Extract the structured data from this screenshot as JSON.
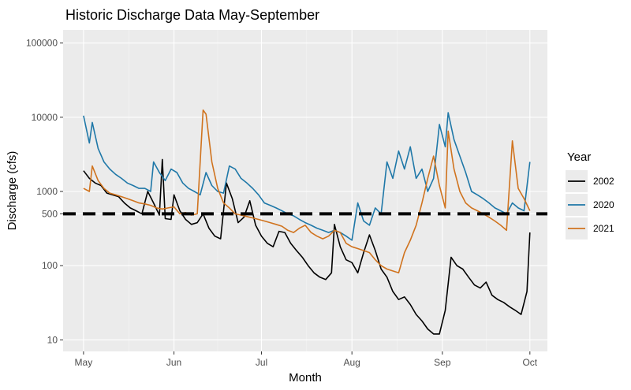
{
  "chart_data": {
    "type": "line",
    "title": "Historic Discharge Data May-September",
    "xlabel": "Month",
    "ylabel": "Discharge (cfs)",
    "y_scale": "log10",
    "ylim": [
      7,
      150000
    ],
    "xlim": [
      "2002-04-24",
      "2002-10-07"
    ],
    "x_ticks": [
      {
        "date": "2002-05-01",
        "label": "May"
      },
      {
        "date": "2002-06-01",
        "label": "Jun"
      },
      {
        "date": "2002-07-01",
        "label": "Jul"
      },
      {
        "date": "2002-08-01",
        "label": "Aug"
      },
      {
        "date": "2002-09-01",
        "label": "Sep"
      },
      {
        "date": "2002-10-01",
        "label": "Oct"
      }
    ],
    "y_ticks": [
      {
        "value": 10,
        "label": "10"
      },
      {
        "value": 100,
        "label": "100"
      },
      {
        "value": 500,
        "label": "500"
      },
      {
        "value": 1000,
        "label": "1000"
      },
      {
        "value": 10000,
        "label": "10000"
      },
      {
        "value": 100000,
        "label": "100000"
      }
    ],
    "grid": true,
    "background": "#ebebeb",
    "reference_line": {
      "value": 500,
      "style": "dashed",
      "color": "#000000"
    },
    "legend": {
      "title": "Year",
      "position": "right"
    },
    "series": [
      {
        "name": "2002",
        "color": "#000000",
        "points": [
          [
            "2002-05-01",
            1900
          ],
          [
            "2002-05-03",
            1500
          ],
          [
            "2002-05-05",
            1300
          ],
          [
            "2002-05-07",
            1200
          ],
          [
            "2002-05-09",
            950
          ],
          [
            "2002-05-11",
            900
          ],
          [
            "2002-05-13",
            850
          ],
          [
            "2002-05-15",
            700
          ],
          [
            "2002-05-17",
            600
          ],
          [
            "2002-05-19",
            550
          ],
          [
            "2002-05-21",
            500
          ],
          [
            "2002-05-23",
            1000
          ],
          [
            "2002-05-25",
            700
          ],
          [
            "2002-05-27",
            480
          ],
          [
            "2002-05-29",
            430
          ],
          [
            "2002-05-31",
            420
          ],
          [
            "2002-05-28",
            2700
          ],
          [
            "2002-06-01",
            900
          ],
          [
            "2002-06-03",
            550
          ],
          [
            "2002-06-05",
            420
          ],
          [
            "2002-06-07",
            360
          ],
          [
            "2002-06-09",
            380
          ],
          [
            "2002-06-11",
            500
          ],
          [
            "2002-06-13",
            320
          ],
          [
            "2002-06-15",
            250
          ],
          [
            "2002-06-17",
            230
          ],
          [
            "2002-06-19",
            1300
          ],
          [
            "2002-06-21",
            800
          ],
          [
            "2002-06-23",
            380
          ],
          [
            "2002-06-25",
            450
          ],
          [
            "2002-06-27",
            750
          ],
          [
            "2002-06-29",
            350
          ],
          [
            "2002-07-01",
            250
          ],
          [
            "2002-07-03",
            200
          ],
          [
            "2002-07-05",
            180
          ],
          [
            "2002-07-07",
            290
          ],
          [
            "2002-07-09",
            280
          ],
          [
            "2002-07-11",
            200
          ],
          [
            "2002-07-13",
            160
          ],
          [
            "2002-07-15",
            130
          ],
          [
            "2002-07-17",
            100
          ],
          [
            "2002-07-19",
            80
          ],
          [
            "2002-07-21",
            70
          ],
          [
            "2002-07-23",
            65
          ],
          [
            "2002-07-25",
            80
          ],
          [
            "2002-07-26",
            360
          ],
          [
            "2002-07-28",
            180
          ],
          [
            "2002-07-30",
            120
          ],
          [
            "2002-08-01",
            110
          ],
          [
            "2002-08-03",
            80
          ],
          [
            "2002-08-05",
            150
          ],
          [
            "2002-08-07",
            260
          ],
          [
            "2002-08-09",
            160
          ],
          [
            "2002-08-11",
            90
          ],
          [
            "2002-08-13",
            70
          ],
          [
            "2002-08-15",
            45
          ],
          [
            "2002-08-17",
            35
          ],
          [
            "2002-08-19",
            38
          ],
          [
            "2002-08-21",
            30
          ],
          [
            "2002-08-23",
            22
          ],
          [
            "2002-08-25",
            18
          ],
          [
            "2002-08-27",
            14
          ],
          [
            "2002-08-29",
            12
          ],
          [
            "2002-08-31",
            12
          ],
          [
            "2002-09-02",
            25
          ],
          [
            "2002-09-04",
            130
          ],
          [
            "2002-09-06",
            100
          ],
          [
            "2002-09-08",
            90
          ],
          [
            "2002-09-10",
            70
          ],
          [
            "2002-09-12",
            55
          ],
          [
            "2002-09-14",
            50
          ],
          [
            "2002-09-16",
            60
          ],
          [
            "2002-09-18",
            40
          ],
          [
            "2002-09-20",
            35
          ],
          [
            "2002-09-22",
            32
          ],
          [
            "2002-09-24",
            28
          ],
          [
            "2002-09-26",
            25
          ],
          [
            "2002-09-28",
            22
          ],
          [
            "2002-09-30",
            45
          ],
          [
            "2002-10-01",
            280
          ]
        ]
      },
      {
        "name": "2020",
        "color": "#1f78a8",
        "points": [
          [
            "2002-05-01",
            10500
          ],
          [
            "2002-05-03",
            4500
          ],
          [
            "2002-05-04",
            8500
          ],
          [
            "2002-05-06",
            3800
          ],
          [
            "2002-05-08",
            2500
          ],
          [
            "2002-05-10",
            2000
          ],
          [
            "2002-05-12",
            1700
          ],
          [
            "2002-05-14",
            1500
          ],
          [
            "2002-05-16",
            1300
          ],
          [
            "2002-05-18",
            1200
          ],
          [
            "2002-05-20",
            1100
          ],
          [
            "2002-05-22",
            1100
          ],
          [
            "2002-05-24",
            1000
          ],
          [
            "2002-05-25",
            2500
          ],
          [
            "2002-05-27",
            1800
          ],
          [
            "2002-05-29",
            1400
          ],
          [
            "2002-05-31",
            2000
          ],
          [
            "2002-06-02",
            1800
          ],
          [
            "2002-06-04",
            1300
          ],
          [
            "2002-06-06",
            1100
          ],
          [
            "2002-06-08",
            1000
          ],
          [
            "2002-06-10",
            900
          ],
          [
            "2002-06-12",
            1800
          ],
          [
            "2002-06-14",
            1200
          ],
          [
            "2002-06-16",
            1000
          ],
          [
            "2002-06-18",
            950
          ],
          [
            "2002-06-20",
            2200
          ],
          [
            "2002-06-22",
            2000
          ],
          [
            "2002-06-24",
            1500
          ],
          [
            "2002-06-26",
            1300
          ],
          [
            "2002-06-28",
            1100
          ],
          [
            "2002-06-30",
            900
          ],
          [
            "2002-07-02",
            700
          ],
          [
            "2002-07-04",
            650
          ],
          [
            "2002-07-06",
            600
          ],
          [
            "2002-07-08",
            550
          ],
          [
            "2002-07-10",
            500
          ],
          [
            "2002-07-12",
            470
          ],
          [
            "2002-07-14",
            420
          ],
          [
            "2002-07-16",
            380
          ],
          [
            "2002-07-18",
            350
          ],
          [
            "2002-07-20",
            320
          ],
          [
            "2002-07-22",
            300
          ],
          [
            "2002-07-24",
            280
          ],
          [
            "2002-07-26",
            300
          ],
          [
            "2002-07-28",
            280
          ],
          [
            "2002-07-30",
            250
          ],
          [
            "2002-08-01",
            220
          ],
          [
            "2002-08-03",
            700
          ],
          [
            "2002-08-05",
            400
          ],
          [
            "2002-08-07",
            350
          ],
          [
            "2002-08-09",
            600
          ],
          [
            "2002-08-11",
            500
          ],
          [
            "2002-08-13",
            2500
          ],
          [
            "2002-08-15",
            1500
          ],
          [
            "2002-08-17",
            3500
          ],
          [
            "2002-08-19",
            2000
          ],
          [
            "2002-08-21",
            4000
          ],
          [
            "2002-08-23",
            1500
          ],
          [
            "2002-08-25",
            2000
          ],
          [
            "2002-08-27",
            1000
          ],
          [
            "2002-08-29",
            1500
          ],
          [
            "2002-08-31",
            8000
          ],
          [
            "2002-09-02",
            4000
          ],
          [
            "2002-09-03",
            11500
          ],
          [
            "2002-09-05",
            5000
          ],
          [
            "2002-09-07",
            3000
          ],
          [
            "2002-09-09",
            1800
          ],
          [
            "2002-09-11",
            1000
          ],
          [
            "2002-09-13",
            900
          ],
          [
            "2002-09-15",
            800
          ],
          [
            "2002-09-17",
            700
          ],
          [
            "2002-09-19",
            600
          ],
          [
            "2002-09-21",
            550
          ],
          [
            "2002-09-23",
            500
          ],
          [
            "2002-09-25",
            700
          ],
          [
            "2002-09-27",
            600
          ],
          [
            "2002-09-29",
            550
          ],
          [
            "2002-10-01",
            2500
          ]
        ]
      },
      {
        "name": "2021",
        "color": "#d0731e",
        "points": [
          [
            "2002-05-01",
            1100
          ],
          [
            "2002-05-03",
            1000
          ],
          [
            "2002-05-04",
            2200
          ],
          [
            "2002-05-06",
            1400
          ],
          [
            "2002-05-08",
            1100
          ],
          [
            "2002-05-10",
            950
          ],
          [
            "2002-05-12",
            900
          ],
          [
            "2002-05-14",
            850
          ],
          [
            "2002-05-16",
            800
          ],
          [
            "2002-05-18",
            750
          ],
          [
            "2002-05-20",
            700
          ],
          [
            "2002-05-22",
            680
          ],
          [
            "2002-05-24",
            650
          ],
          [
            "2002-05-26",
            600
          ],
          [
            "2002-05-28",
            580
          ],
          [
            "2002-05-30",
            600
          ],
          [
            "2002-06-01",
            620
          ],
          [
            "2002-06-03",
            500
          ],
          [
            "2002-06-05",
            520
          ],
          [
            "2002-06-07",
            480
          ],
          [
            "2002-06-09",
            500
          ],
          [
            "2002-06-11",
            12500
          ],
          [
            "2002-06-12",
            11000
          ],
          [
            "2002-06-14",
            2500
          ],
          [
            "2002-06-16",
            1100
          ],
          [
            "2002-06-18",
            700
          ],
          [
            "2002-06-20",
            600
          ],
          [
            "2002-06-22",
            500
          ],
          [
            "2002-06-24",
            480
          ],
          [
            "2002-06-26",
            460
          ],
          [
            "2002-06-28",
            440
          ],
          [
            "2002-06-30",
            420
          ],
          [
            "2002-07-02",
            400
          ],
          [
            "2002-07-04",
            380
          ],
          [
            "2002-07-06",
            360
          ],
          [
            "2002-07-08",
            340
          ],
          [
            "2002-07-10",
            300
          ],
          [
            "2002-07-12",
            280
          ],
          [
            "2002-07-14",
            320
          ],
          [
            "2002-07-16",
            350
          ],
          [
            "2002-07-18",
            280
          ],
          [
            "2002-07-20",
            250
          ],
          [
            "2002-07-22",
            230
          ],
          [
            "2002-07-24",
            250
          ],
          [
            "2002-07-26",
            300
          ],
          [
            "2002-07-28",
            280
          ],
          [
            "2002-07-30",
            200
          ],
          [
            "2002-08-01",
            180
          ],
          [
            "2002-08-03",
            170
          ],
          [
            "2002-08-05",
            160
          ],
          [
            "2002-08-07",
            150
          ],
          [
            "2002-08-09",
            120
          ],
          [
            "2002-08-11",
            100
          ],
          [
            "2002-08-13",
            90
          ],
          [
            "2002-08-15",
            85
          ],
          [
            "2002-08-17",
            80
          ],
          [
            "2002-08-19",
            150
          ],
          [
            "2002-08-21",
            220
          ],
          [
            "2002-08-23",
            350
          ],
          [
            "2002-08-25",
            700
          ],
          [
            "2002-08-27",
            1500
          ],
          [
            "2002-08-29",
            3000
          ],
          [
            "2002-08-31",
            1200
          ],
          [
            "2002-09-02",
            600
          ],
          [
            "2002-09-03",
            6500
          ],
          [
            "2002-09-05",
            2000
          ],
          [
            "2002-09-07",
            1000
          ],
          [
            "2002-09-09",
            700
          ],
          [
            "2002-09-11",
            600
          ],
          [
            "2002-09-13",
            550
          ],
          [
            "2002-09-15",
            500
          ],
          [
            "2002-09-17",
            450
          ],
          [
            "2002-09-19",
            400
          ],
          [
            "2002-09-21",
            350
          ],
          [
            "2002-09-23",
            300
          ],
          [
            "2002-09-25",
            4800
          ],
          [
            "2002-09-27",
            1100
          ],
          [
            "2002-09-29",
            800
          ],
          [
            "2002-10-01",
            550
          ]
        ]
      }
    ]
  }
}
